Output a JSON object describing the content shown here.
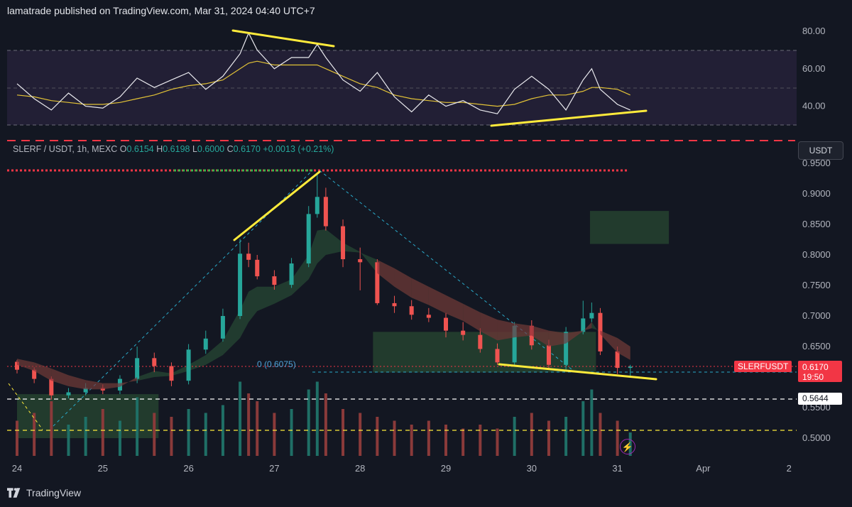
{
  "header": {
    "published": "lamatrade published on TradingView.com, Mar 31, 2024 04:40 UTC+7"
  },
  "legend": {
    "symbol": "SLERF / USDT, 1h, MEXC",
    "o_label": "O",
    "o_value": "0.6154",
    "h_label": "H",
    "h_value": "0.6198",
    "l_label": "L",
    "l_value": "0.6000",
    "c_label": "C",
    "c_value": "0.6170",
    "change": "+0.0013 (+0.21%)"
  },
  "currency_button": "USDT",
  "last_price": {
    "value": "0.6170",
    "countdown": "19:50",
    "symbol": "SLERFUSDT"
  },
  "level_label": "0.5644",
  "fib_label": "0 (0.6075)",
  "watermark": "TradingView",
  "colors": {
    "up": "#26a69a",
    "down": "#ef5350",
    "highlight": "#ffeb3b",
    "rsi_band": "#2a2540",
    "dashed_cyan": "#2aa9c9",
    "dashed_red": "#f23645"
  },
  "chart_data": [
    {
      "type": "line",
      "title": "",
      "y_ticks": [
        "80.00",
        "60.00",
        "40.00"
      ],
      "ylim": [
        26,
        88
      ],
      "band": [
        30,
        70
      ],
      "x": [
        24.0,
        24.2,
        24.4,
        24.6,
        24.8,
        25.0,
        25.2,
        25.4,
        25.6,
        25.8,
        26.0,
        26.2,
        26.4,
        26.6,
        26.7,
        26.8,
        27.0,
        27.2,
        27.4,
        27.5,
        27.6,
        27.8,
        28.0,
        28.2,
        28.4,
        28.6,
        28.8,
        29.0,
        29.2,
        29.4,
        29.6,
        29.8,
        30.0,
        30.2,
        30.4,
        30.6,
        30.7,
        30.8,
        31.0,
        31.15
      ],
      "series": [
        {
          "values": [
            52,
            44,
            38,
            47,
            40,
            39,
            45,
            55,
            50,
            54,
            58,
            49,
            56,
            68,
            79,
            70,
            60,
            66,
            66,
            73,
            66,
            54,
            48,
            58,
            45,
            37,
            46,
            40,
            43,
            38,
            36,
            49,
            56,
            49,
            38,
            54,
            60,
            49,
            41,
            38
          ]
        },
        {
          "values": [
            46,
            45,
            43,
            42,
            41,
            41,
            42,
            44,
            46,
            49,
            51,
            52,
            54,
            60,
            63,
            64,
            62,
            62,
            62,
            62,
            60,
            56,
            52,
            50,
            46,
            44,
            43,
            42,
            42,
            41,
            40,
            41,
            44,
            46,
            46,
            48,
            50,
            50,
            49,
            46
          ]
        }
      ]
    },
    {
      "type": "candlestick",
      "title": "",
      "x_ticks": [
        "24",
        "25",
        "26",
        "27",
        "28",
        "29",
        "30",
        "31",
        "Apr",
        "2"
      ],
      "y_ticks": [
        "0.9500",
        "0.9000",
        "0.8500",
        "0.8000",
        "0.7500",
        "0.7000",
        "0.6500",
        "0.6000",
        "0.5500",
        "0.5000"
      ],
      "ylim": [
        0.484,
        0.955
      ],
      "x": [
        24.0,
        24.2,
        24.4,
        24.6,
        24.8,
        25.0,
        25.2,
        25.4,
        25.6,
        25.8,
        26.0,
        26.2,
        26.4,
        26.6,
        26.7,
        26.8,
        27.0,
        27.2,
        27.4,
        27.5,
        27.6,
        27.8,
        28.0,
        28.2,
        28.4,
        28.6,
        28.8,
        29.0,
        29.2,
        29.4,
        29.6,
        29.8,
        30.0,
        30.2,
        30.4,
        30.6,
        30.7,
        30.8,
        31.0,
        31.15
      ],
      "open": [
        0.625,
        0.612,
        0.597,
        0.57,
        0.575,
        0.582,
        0.578,
        0.597,
        0.631,
        0.618,
        0.594,
        0.645,
        0.663,
        0.7,
        0.802,
        0.792,
        0.765,
        0.751,
        0.786,
        0.867,
        0.895,
        0.847,
        0.793,
        0.788,
        0.721,
        0.716,
        0.702,
        0.697,
        0.676,
        0.669,
        0.646,
        0.624,
        0.684,
        0.652,
        0.62,
        0.674,
        0.696,
        0.705,
        0.642,
        0.615
      ],
      "close": [
        0.612,
        0.597,
        0.57,
        0.575,
        0.582,
        0.578,
        0.597,
        0.631,
        0.618,
        0.594,
        0.645,
        0.663,
        0.7,
        0.802,
        0.792,
        0.765,
        0.751,
        0.786,
        0.867,
        0.895,
        0.847,
        0.793,
        0.788,
        0.721,
        0.716,
        0.702,
        0.697,
        0.676,
        0.669,
        0.646,
        0.624,
        0.684,
        0.652,
        0.62,
        0.674,
        0.696,
        0.705,
        0.642,
        0.615,
        0.617
      ],
      "high": [
        0.628,
        0.616,
        0.601,
        0.582,
        0.59,
        0.588,
        0.603,
        0.65,
        0.64,
        0.624,
        0.654,
        0.676,
        0.712,
        0.826,
        0.82,
        0.8,
        0.775,
        0.795,
        0.88,
        0.935,
        0.91,
        0.858,
        0.812,
        0.793,
        0.733,
        0.726,
        0.713,
        0.705,
        0.69,
        0.68,
        0.655,
        0.69,
        0.693,
        0.661,
        0.682,
        0.725,
        0.722,
        0.713,
        0.65,
        0.62
      ],
      "low": [
        0.606,
        0.59,
        0.563,
        0.565,
        0.57,
        0.572,
        0.572,
        0.59,
        0.608,
        0.585,
        0.588,
        0.638,
        0.658,
        0.695,
        0.78,
        0.76,
        0.743,
        0.746,
        0.78,
        0.861,
        0.84,
        0.78,
        0.742,
        0.718,
        0.705,
        0.694,
        0.69,
        0.665,
        0.66,
        0.64,
        0.62,
        0.617,
        0.645,
        0.612,
        0.612,
        0.67,
        0.69,
        0.636,
        0.605,
        0.6
      ],
      "volume": [
        0.45,
        0.55,
        0.7,
        0.4,
        0.5,
        0.6,
        0.45,
        0.75,
        0.55,
        0.5,
        0.6,
        0.55,
        0.65,
        0.95,
        0.8,
        0.7,
        0.55,
        0.6,
        0.85,
        0.95,
        0.8,
        0.6,
        0.55,
        0.5,
        0.45,
        0.4,
        0.45,
        0.4,
        0.35,
        0.4,
        0.35,
        0.5,
        0.55,
        0.45,
        0.5,
        0.7,
        0.85,
        0.55,
        0.45,
        0.3
      ],
      "ema_fast": [
        0.62,
        0.61,
        0.594,
        0.585,
        0.58,
        0.58,
        0.584,
        0.6,
        0.61,
        0.606,
        0.62,
        0.636,
        0.66,
        0.71,
        0.74,
        0.748,
        0.748,
        0.76,
        0.8,
        0.84,
        0.842,
        0.82,
        0.805,
        0.77,
        0.748,
        0.73,
        0.718,
        0.704,
        0.692,
        0.675,
        0.66,
        0.665,
        0.668,
        0.65,
        0.655,
        0.675,
        0.69,
        0.67,
        0.64,
        0.628
      ],
      "ema_slow": [
        0.63,
        0.624,
        0.614,
        0.603,
        0.595,
        0.59,
        0.59,
        0.594,
        0.6,
        0.602,
        0.61,
        0.62,
        0.636,
        0.664,
        0.69,
        0.708,
        0.72,
        0.734,
        0.76,
        0.786,
        0.8,
        0.806,
        0.804,
        0.792,
        0.778,
        0.762,
        0.748,
        0.734,
        0.72,
        0.706,
        0.694,
        0.688,
        0.684,
        0.676,
        0.672,
        0.676,
        0.68,
        0.676,
        0.664,
        0.65
      ],
      "horizontal_levels": {
        "fib_0": 0.6075,
        "white_dashed": 0.5644,
        "yellow_dashed": 0.512,
        "top_dotted": 0.938
      },
      "zones": [
        {
          "x0": 28.15,
          "x1": 30.75,
          "y0": 0.6075,
          "y1": 0.674
        },
        {
          "x0": 30.68,
          "x1": 31.6,
          "y0": 0.818,
          "y1": 0.872
        },
        {
          "x0": 24.0,
          "x1": 25.65,
          "y0": 0.5,
          "y1": 0.572
        }
      ]
    }
  ]
}
